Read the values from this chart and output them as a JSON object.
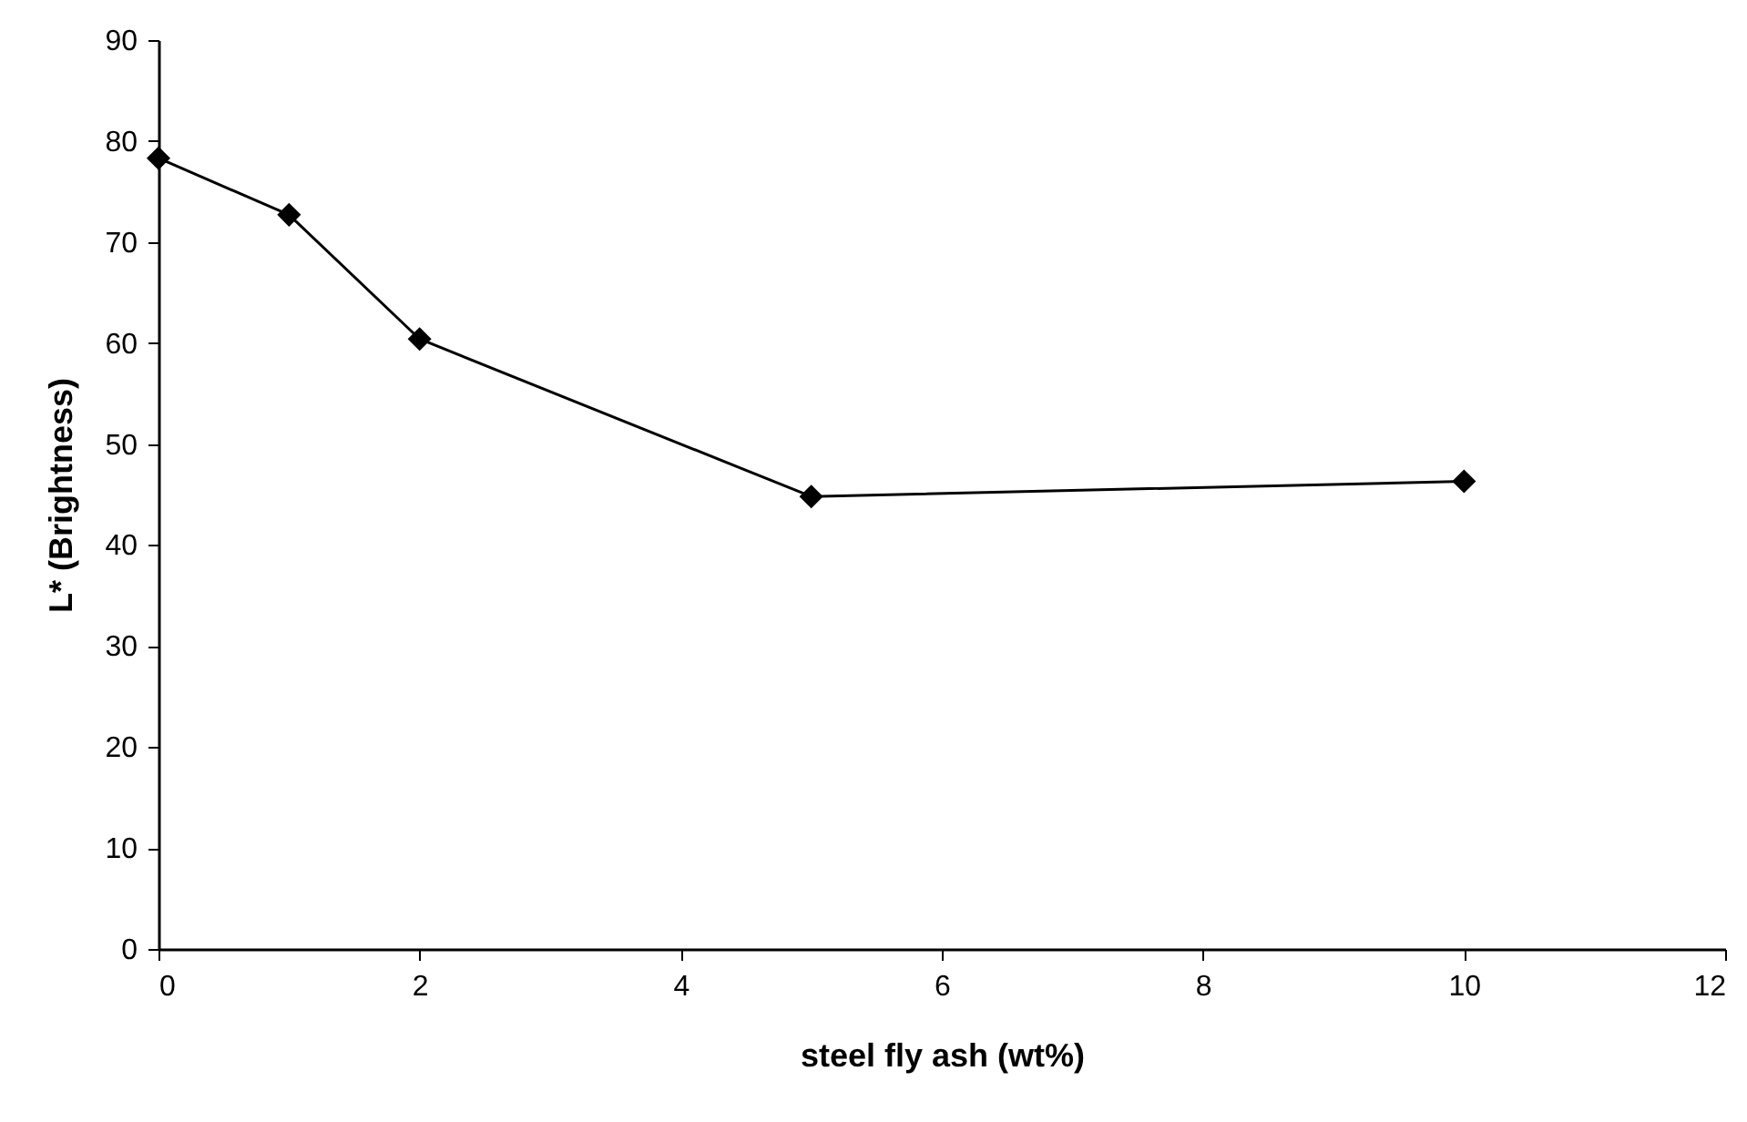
{
  "chart_data": {
    "type": "line",
    "xlabel": "steel fly ash (wt%)",
    "ylabel": "L* (Brightness)",
    "x": [
      0,
      1,
      2,
      5,
      10
    ],
    "series": [
      {
        "color": "#000000",
        "values": [
          78.3,
          72.7,
          60.4,
          44.8,
          46.3
        ]
      }
    ],
    "xlim": [
      0,
      12
    ],
    "xticks": [
      0,
      2,
      4,
      6,
      8,
      10,
      12
    ],
    "ylim": [
      0,
      90
    ],
    "yticks": [
      0,
      10,
      20,
      30,
      40,
      50,
      60,
      70,
      80,
      90
    ],
    "marker": "diamond",
    "line_style": "solid"
  }
}
